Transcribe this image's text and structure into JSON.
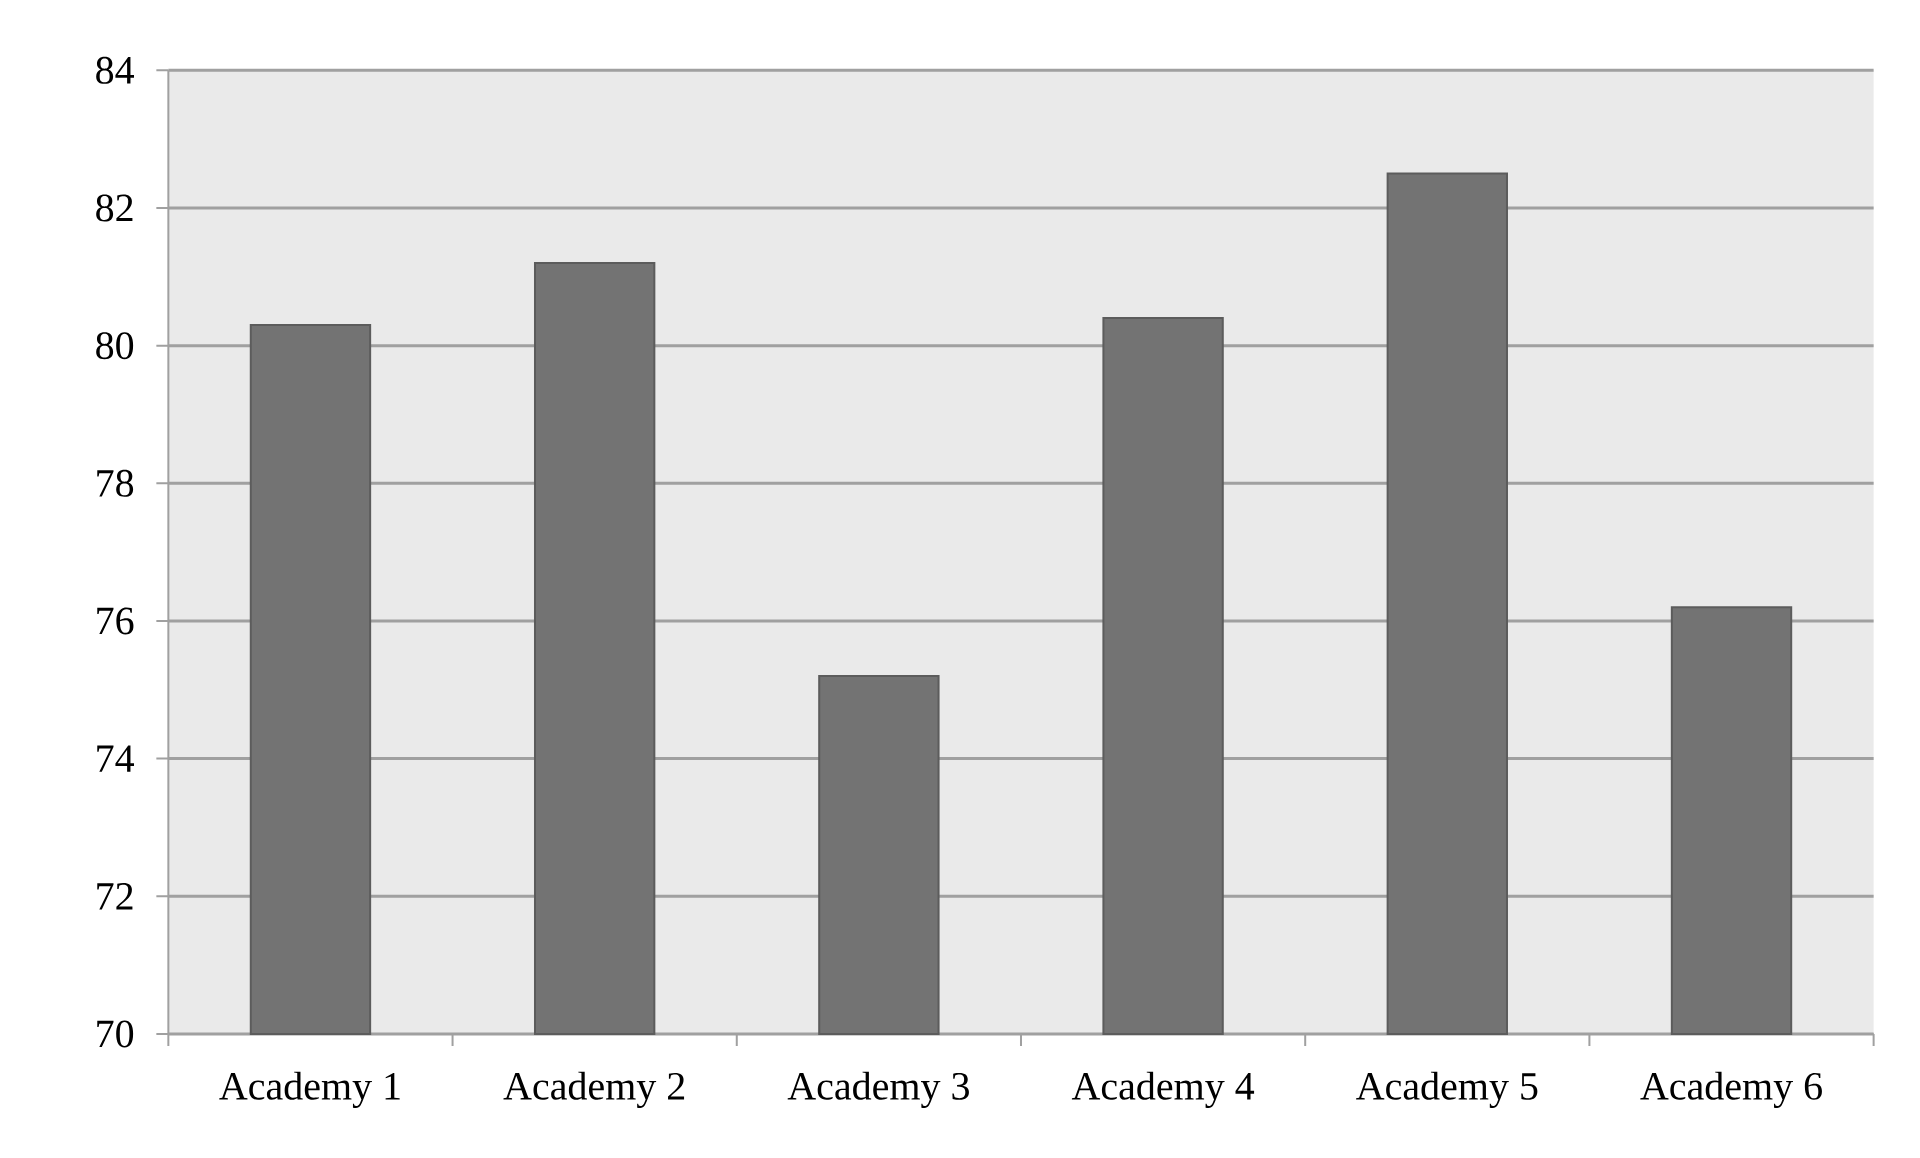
{
  "chart_data": {
    "type": "bar",
    "categories": [
      "Academy 1",
      "Academy 2",
      "Academy 3",
      "Academy 4",
      "Academy 5",
      "Academy 6"
    ],
    "values": [
      80.3,
      81.2,
      75.2,
      80.4,
      82.5,
      76.2
    ],
    "color": "#737373",
    "ylim": [
      70,
      84
    ],
    "yticks": [
      70,
      72,
      74,
      76,
      78,
      80,
      82,
      84
    ],
    "grid": "y"
  }
}
